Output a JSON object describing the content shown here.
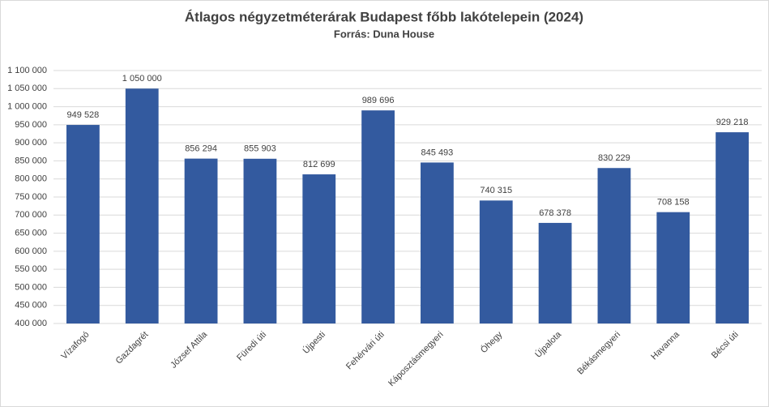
{
  "chart_data": {
    "type": "bar",
    "title": "Átlagos négyzetméterárak Budapest főbb lakótelepein (2024)",
    "subtitle": "Forrás: Duna House",
    "categories": [
      "Vízafogó",
      "Gazdagrét",
      "József Attila",
      "Füredi úti",
      "Újpesti",
      "Fehérvári úti",
      "Káposztásmegyeri",
      "Óhegy",
      "Újpalota",
      "Békásmegyeri",
      "Havanna",
      "Bécsi úti"
    ],
    "values": [
      949528,
      1050000,
      856294,
      855903,
      812699,
      989696,
      845493,
      740315,
      678378,
      830229,
      708158,
      929218
    ],
    "value_labels": [
      "949 528",
      "1 050 000",
      "856 294",
      "855 903",
      "812 699",
      "989 696",
      "845 493",
      "740 315",
      "678 378",
      "830 229",
      "708 158",
      "929 218"
    ],
    "color": "#335a9f",
    "ylim": [
      400000,
      1100000
    ],
    "yticks": [
      {
        "value": 400000,
        "label": "400 000"
      },
      {
        "value": 450000,
        "label": "450 000"
      },
      {
        "value": 500000,
        "label": "500 000"
      },
      {
        "value": 550000,
        "label": "550 000"
      },
      {
        "value": 600000,
        "label": "600 000"
      },
      {
        "value": 650000,
        "label": "650 000"
      },
      {
        "value": 700000,
        "label": "700 000"
      },
      {
        "value": 750000,
        "label": "750 000"
      },
      {
        "value": 800000,
        "label": "800 000"
      },
      {
        "value": 850000,
        "label": "850 000"
      },
      {
        "value": 900000,
        "label": "900 000"
      },
      {
        "value": 950000,
        "label": "950 000"
      },
      {
        "value": 1000000,
        "label": "1 000 000"
      },
      {
        "value": 1050000,
        "label": "1 050 000"
      },
      {
        "value": 1100000,
        "label": "1 100 000"
      }
    ],
    "grid": true
  }
}
